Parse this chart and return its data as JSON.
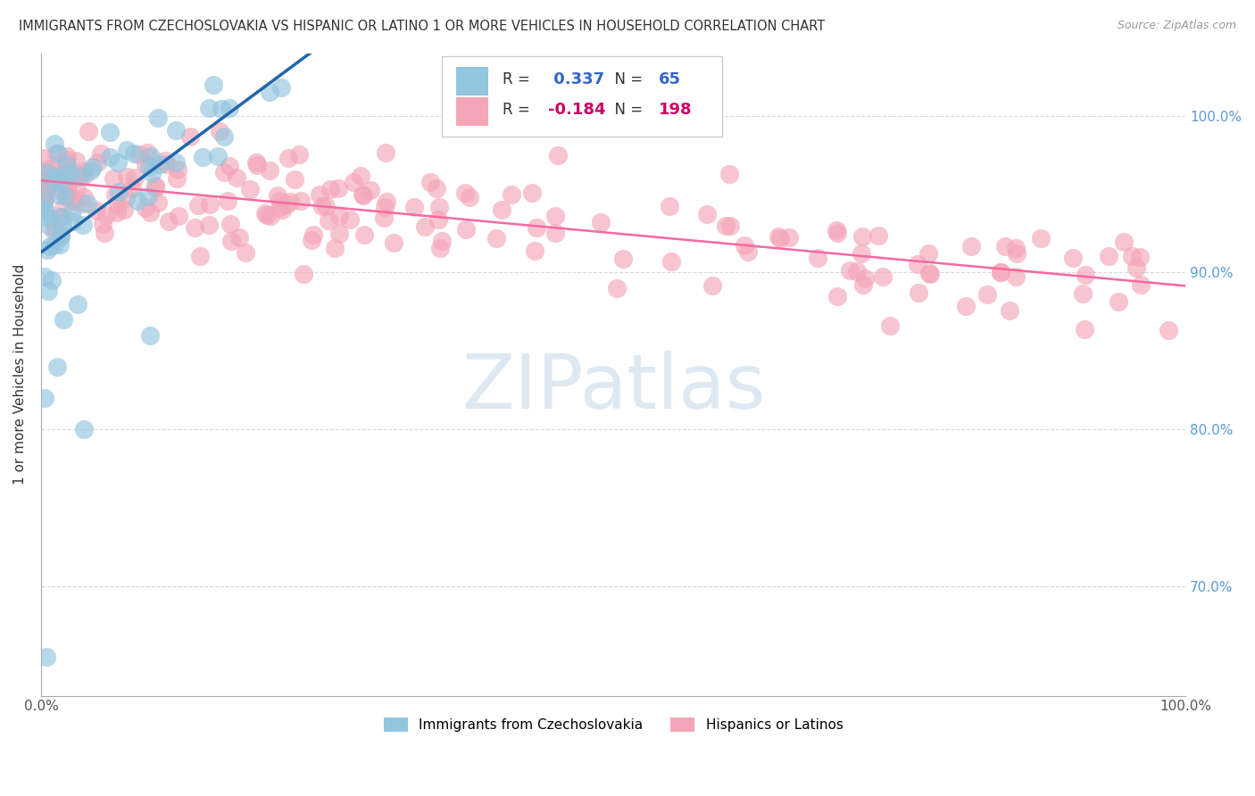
{
  "title": "IMMIGRANTS FROM CZECHOSLOVAKIA VS HISPANIC OR LATINO 1 OR MORE VEHICLES IN HOUSEHOLD CORRELATION CHART",
  "source": "Source: ZipAtlas.com",
  "ylabel": "1 or more Vehicles in Household",
  "ytick_labels": [
    "70.0%",
    "80.0%",
    "90.0%",
    "100.0%"
  ],
  "ytick_values": [
    0.7,
    0.8,
    0.9,
    1.0
  ],
  "xlim": [
    0.0,
    1.0
  ],
  "ylim": [
    0.63,
    1.04
  ],
  "legend_label1": "Immigrants from Czechoslovakia",
  "legend_label2": "Hispanics or Latinos",
  "r1": 0.337,
  "n1": 65,
  "r2": -0.184,
  "n2": 198,
  "blue_color": "#92c5de",
  "pink_color": "#f4a6b8",
  "blue_line_color": "#2166ac",
  "pink_line_color": "#f768a1",
  "watermark_color": "#c8daea",
  "watermark_alpha": 0.6,
  "grid_color": "#d9d9d9",
  "spine_color": "#aaaaaa",
  "right_tick_color": "#5b9bd5",
  "title_fontsize": 10.5,
  "source_fontsize": 9,
  "tick_fontsize": 11,
  "ylabel_fontsize": 11
}
